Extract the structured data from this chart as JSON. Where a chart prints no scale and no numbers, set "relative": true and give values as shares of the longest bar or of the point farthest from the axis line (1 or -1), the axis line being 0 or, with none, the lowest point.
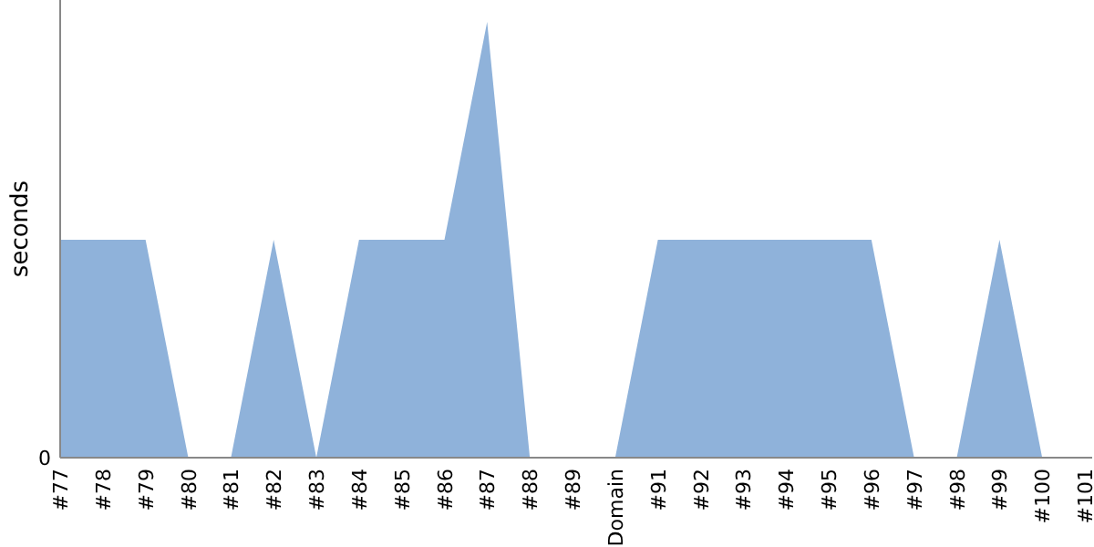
{
  "chart_data": {
    "type": "area",
    "ylabel": "seconds",
    "relative": true,
    "annotations": [
      "0"
    ],
    "categories": [
      "#77",
      "#78",
      "#79",
      "#80",
      "#81",
      "#82",
      "#83",
      "#84",
      "#85",
      "#86",
      "#87",
      "#88",
      "#89",
      "Domain",
      "#91",
      "#92",
      "#93",
      "#94",
      "#95",
      "#96",
      "#97",
      "#98",
      "#99",
      "#100",
      "#101"
    ],
    "series": [
      {
        "color": "#8fb2da",
        "values": [
          0.5,
          0.5,
          0.5,
          0,
          0,
          0.5,
          0,
          0.5,
          0.5,
          0.5,
          1,
          0,
          0,
          0,
          0.5,
          0.5,
          0.5,
          0.5,
          0.5,
          0.5,
          0,
          0,
          0.5,
          0,
          0
        ]
      }
    ]
  }
}
